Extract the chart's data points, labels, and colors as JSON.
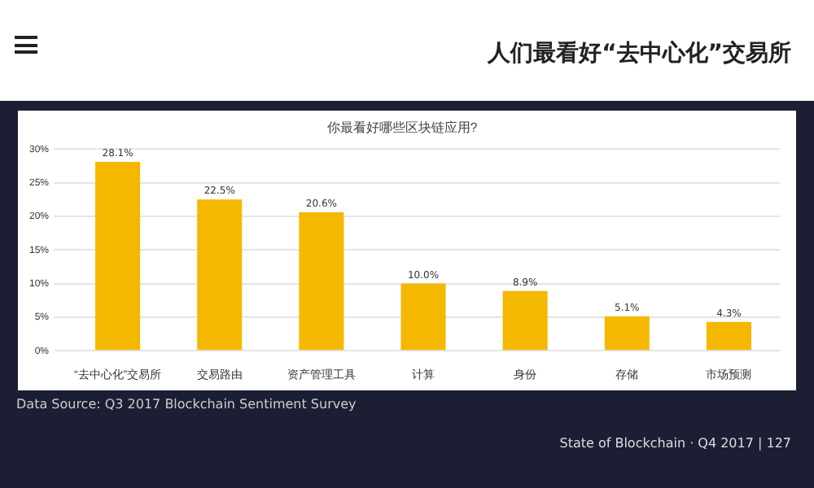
{
  "chart_data": {
    "type": "bar",
    "title": "人们最看好“去中心化”交易所",
    "subtitle": "你最看好哪些区块链应用?",
    "categories": [
      "“去中心化”交易所",
      "交易路由",
      "资产管理工具",
      "计算",
      "身份",
      "存储",
      "市场预测"
    ],
    "values": [
      28.1,
      22.5,
      20.6,
      10.0,
      8.9,
      5.1,
      4.3
    ],
    "value_labels": [
      "28.1%",
      "22.5%",
      "20.6%",
      "10.0%",
      "8.9%",
      "5.1%",
      "4.3%"
    ],
    "color": "#f5b800",
    "ylim": [
      0,
      30
    ],
    "yticks": [
      {
        "value": 0,
        "label": "0%"
      },
      {
        "value": 5,
        "label": "5%"
      },
      {
        "value": 10,
        "label": "10%"
      },
      {
        "value": 15,
        "label": "15%"
      },
      {
        "value": 20,
        "label": "20%"
      },
      {
        "value": 25,
        "label": "25%"
      },
      {
        "value": 30,
        "label": "30%"
      }
    ],
    "grid": "y",
    "legend": false,
    "annotations": [
      "Data Source: Q3 2017 Blockchain Sentiment Survey",
      "State of Blockchain · Q4 2017  |  127"
    ]
  }
}
